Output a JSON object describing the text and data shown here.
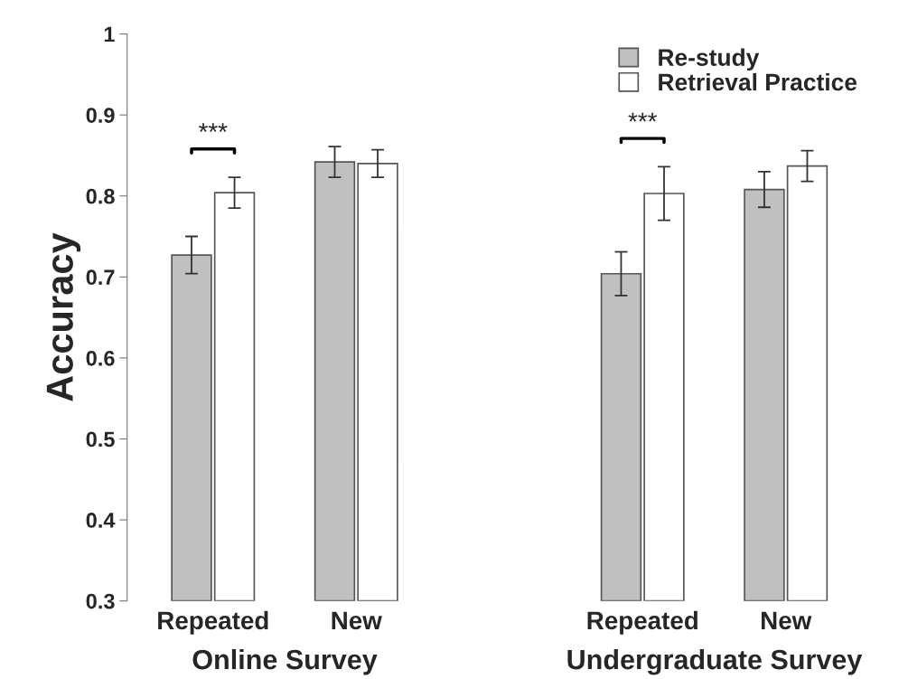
{
  "chart_data": {
    "type": "bar",
    "ylabel": "Accuracy",
    "categories": [
      "Repeated",
      "New",
      null,
      "Repeated",
      "New"
    ],
    "series": [
      {
        "name": "Re-study",
        "color": "#c0c0c0",
        "values": [
          0.727,
          0.842,
          null,
          0.704,
          0.808
        ],
        "errors": [
          0.023,
          0.019,
          null,
          0.027,
          0.022
        ]
      },
      {
        "name": "Retrieval Practice",
        "color": "#ffffff",
        "values": [
          0.804,
          0.84,
          null,
          0.803,
          0.837
        ],
        "errors": [
          0.019,
          0.017,
          null,
          0.033,
          0.019
        ]
      }
    ],
    "ylim": [
      0.3,
      1
    ],
    "yticks": [
      0.3,
      0.4,
      0.5,
      0.6,
      0.7,
      0.8,
      0.9,
      1
    ],
    "annotations": [
      "Online Survey",
      "Undergraduate Survey",
      "***",
      "***"
    ],
    "grid": false,
    "legend": "top right"
  }
}
